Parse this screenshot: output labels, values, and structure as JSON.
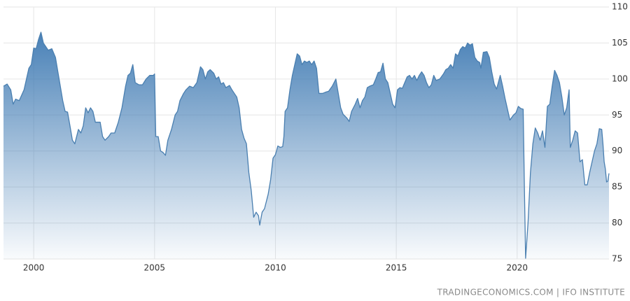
{
  "chart_data": {
    "type": "area",
    "source": "TRADINGECONOMICS.COM | IFO INSTITUTE",
    "color": "#4a7fb0",
    "grid": true,
    "xlim": [
      1998.75,
      2023.8
    ],
    "ylim": [
      75,
      110
    ],
    "xticks": [
      2000,
      2005,
      2010,
      2015,
      2020
    ],
    "yticks": [
      75,
      80,
      85,
      90,
      95,
      100,
      105,
      110
    ],
    "x": [
      1998.75,
      1998.9,
      1999.05,
      1999.15,
      1999.25,
      1999.4,
      1999.6,
      1999.8,
      1999.9,
      2000.0,
      2000.1,
      2000.2,
      2000.3,
      2000.4,
      2000.6,
      2000.75,
      2000.9,
      2001.0,
      2001.2,
      2001.3,
      2001.4,
      2001.5,
      2001.6,
      2001.7,
      2001.85,
      2001.95,
      2002.05,
      2002.15,
      2002.25,
      2002.35,
      2002.45,
      2002.55,
      2002.75,
      2002.85,
      2002.95,
      2003.1,
      2003.2,
      2003.35,
      2003.5,
      2003.65,
      2003.8,
      2003.9,
      2004.0,
      2004.1,
      2004.2,
      2004.35,
      2004.5,
      2004.65,
      2004.8,
      2004.95,
      2005.0,
      2005.05,
      2005.15,
      2005.25,
      2005.35,
      2005.45,
      2005.55,
      2005.7,
      2005.85,
      2005.95,
      2006.05,
      2006.2,
      2006.3,
      2006.45,
      2006.6,
      2006.75,
      2006.9,
      2007.0,
      2007.1,
      2007.2,
      2007.3,
      2007.45,
      2007.55,
      2007.65,
      2007.75,
      2007.85,
      2007.95,
      2008.1,
      2008.2,
      2008.3,
      2008.4,
      2008.5,
      2008.6,
      2008.7,
      2008.8,
      2008.9,
      2009.0,
      2009.1,
      2009.2,
      2009.3,
      2009.35,
      2009.45,
      2009.55,
      2009.7,
      2009.8,
      2009.9,
      2010.0,
      2010.1,
      2010.2,
      2010.3,
      2010.35,
      2010.4,
      2010.5,
      2010.6,
      2010.7,
      2010.8,
      2010.9,
      2011.0,
      2011.1,
      2011.2,
      2011.3,
      2011.4,
      2011.5,
      2011.6,
      2011.7,
      2011.8,
      2011.95,
      2012.1,
      2012.2,
      2012.35,
      2012.5,
      2012.6,
      2012.7,
      2012.8,
      2012.95,
      2013.05,
      2013.15,
      2013.3,
      2013.4,
      2013.5,
      2013.6,
      2013.7,
      2013.8,
      2013.9,
      2014.05,
      2014.15,
      2014.25,
      2014.35,
      2014.45,
      2014.55,
      2014.65,
      2014.75,
      2014.85,
      2014.95,
      2015.05,
      2015.15,
      2015.25,
      2015.35,
      2015.45,
      2015.55,
      2015.65,
      2015.75,
      2015.85,
      2015.95,
      2016.05,
      2016.15,
      2016.25,
      2016.35,
      2016.45,
      2016.55,
      2016.65,
      2016.8,
      2016.95,
      2017.05,
      2017.15,
      2017.25,
      2017.35,
      2017.45,
      2017.55,
      2017.65,
      2017.75,
      2017.85,
      2017.95,
      2018.05,
      2018.15,
      2018.25,
      2018.35,
      2018.45,
      2018.5,
      2018.6,
      2018.75,
      2018.85,
      2018.95,
      2019.05,
      2019.15,
      2019.3,
      2019.4,
      2019.5,
      2019.6,
      2019.7,
      2019.85,
      2019.95,
      2020.05,
      2020.15,
      2020.25,
      2020.3,
      2020.35,
      2020.45,
      2020.55,
      2020.65,
      2020.75,
      2020.85,
      2020.95,
      2021.05,
      2021.15,
      2021.25,
      2021.35,
      2021.45,
      2021.55,
      2021.65,
      2021.75,
      2021.85,
      2021.95,
      2022.05,
      2022.15,
      2022.2,
      2022.3,
      2022.4,
      2022.5,
      2022.6,
      2022.7,
      2022.8,
      2022.9,
      2023.0,
      2023.1,
      2023.2,
      2023.3,
      2023.4,
      2023.5,
      2023.55,
      2023.6,
      2023.65,
      2023.7,
      2023.75,
      2023.8
    ],
    "values": [
      99,
      99.3,
      98.5,
      96.5,
      97.2,
      97,
      98.5,
      101.5,
      102,
      104.3,
      104.2,
      105.5,
      106.5,
      105,
      104,
      104.2,
      103,
      101,
      97,
      95.5,
      95.4,
      93.5,
      91.5,
      91,
      93,
      92.5,
      93.5,
      96,
      95.3,
      96,
      95.5,
      94,
      94,
      92,
      91.5,
      92,
      92.5,
      92.5,
      94,
      96,
      99,
      100.5,
      100.8,
      102,
      99.5,
      99.2,
      99.2,
      100,
      100.5,
      100.5,
      100.7,
      92,
      92,
      90,
      89.8,
      89.4,
      91.5,
      93,
      95,
      95.5,
      97,
      98,
      98.5,
      99,
      98.8,
      99.5,
      101.7,
      101.3,
      100,
      101,
      101.3,
      100.8,
      100,
      100.3,
      99.3,
      99.5,
      98.8,
      99.1,
      98.5,
      98,
      97.5,
      96,
      93,
      91.8,
      91,
      87,
      84.5,
      80.8,
      81.5,
      81,
      79.7,
      81.5,
      82,
      84,
      86,
      89,
      89.5,
      90.7,
      90.5,
      90.6,
      92,
      95.5,
      96,
      98.5,
      100.5,
      102,
      103.5,
      103.2,
      102,
      102.5,
      102.3,
      102.5,
      102,
      102.5,
      101.5,
      98,
      98,
      98.2,
      98.3,
      99,
      100,
      98,
      96,
      95.1,
      94.6,
      94.1,
      95.5,
      96.5,
      97.3,
      96,
      97,
      97.5,
      98.8,
      99,
      99.2,
      100,
      100.9,
      101,
      102.2,
      100,
      99.5,
      98,
      96.5,
      96,
      98.5,
      98.8,
      98.7,
      99.5,
      100.3,
      100.5,
      100,
      100.5,
      99.8,
      100.5,
      101,
      100.5,
      99.5,
      98.8,
      99.2,
      100.5,
      99.8,
      100,
      100.7,
      101.3,
      101.5,
      102,
      101.5,
      103.5,
      103.2,
      104.1,
      104.5,
      104.3,
      105,
      104.7,
      104.9,
      103,
      102.5,
      102.3,
      101.5,
      103.7,
      103.8,
      103,
      101,
      99.3,
      98.6,
      100.5,
      99,
      97.3,
      95.8,
      94.3,
      95,
      95.3,
      96.2,
      95.9,
      95.8,
      85,
      75.1,
      80,
      87,
      91,
      93.2,
      92.5,
      91.5,
      92.8,
      90.5,
      96.2,
      96.5,
      99,
      101.2,
      100.5,
      99.5,
      97.5,
      95,
      96,
      98.5,
      90.5,
      91.5,
      92.8,
      92.5,
      88.5,
      88.8,
      85.3,
      85.3,
      87,
      88.5,
      90,
      91,
      93.1,
      93,
      91,
      88.5,
      87.5,
      85.7,
      85.8,
      86.9
    ]
  }
}
